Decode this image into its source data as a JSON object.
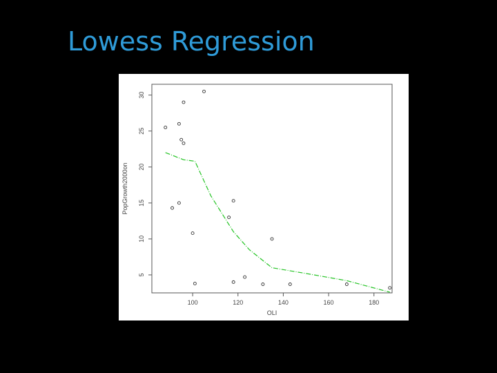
{
  "slide": {
    "title": "Lowess Regression"
  },
  "chart_data": {
    "type": "scatter",
    "xlabel": "OLI",
    "ylabel": "PopGrowth2000on",
    "xlim": [
      82,
      188
    ],
    "ylim": [
      2.5,
      31.5
    ],
    "x_ticks": [
      100,
      120,
      140,
      160,
      180
    ],
    "y_ticks": [
      5,
      10,
      15,
      20,
      25,
      30
    ],
    "grid": false,
    "points": [
      {
        "x": 105,
        "y": 30.5
      },
      {
        "x": 96,
        "y": 29
      },
      {
        "x": 94,
        "y": 26
      },
      {
        "x": 88,
        "y": 25.5
      },
      {
        "x": 95,
        "y": 23.8
      },
      {
        "x": 96,
        "y": 23.3
      },
      {
        "x": 118,
        "y": 15.3
      },
      {
        "x": 94,
        "y": 15
      },
      {
        "x": 91,
        "y": 14.3
      },
      {
        "x": 116,
        "y": 13
      },
      {
        "x": 100,
        "y": 10.8
      },
      {
        "x": 135,
        "y": 10
      },
      {
        "x": 123,
        "y": 4.7
      },
      {
        "x": 101,
        "y": 3.8
      },
      {
        "x": 118,
        "y": 4
      },
      {
        "x": 131,
        "y": 3.7
      },
      {
        "x": 143,
        "y": 3.7
      },
      {
        "x": 168,
        "y": 3.7
      },
      {
        "x": 187,
        "y": 3.2
      }
    ],
    "series": [
      {
        "type": "line",
        "color": "#22c322",
        "x": [
          88,
          96,
          101,
          108,
          118,
          125,
          135,
          150,
          168,
          187
        ],
        "y": [
          22,
          21,
          20.8,
          16,
          11,
          8.5,
          6,
          5.2,
          4.2,
          2.6
        ]
      }
    ]
  }
}
